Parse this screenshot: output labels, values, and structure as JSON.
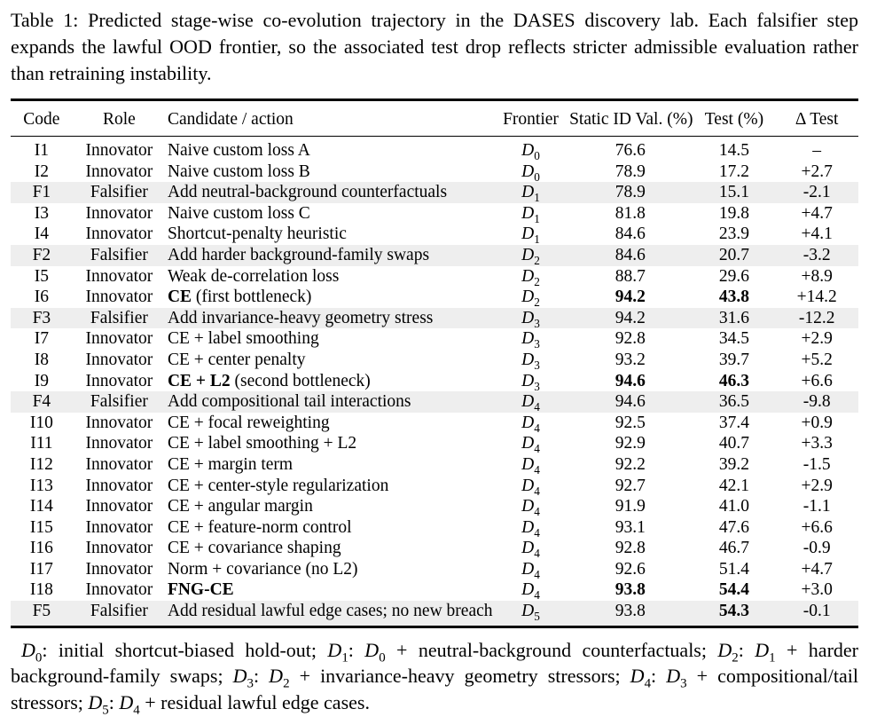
{
  "caption": "Table 1: Predicted stage-wise co-evolution trajectory in the DASES discovery lab. Each falsifier step expands the lawful OOD frontier, so the associated test drop reflects stricter admissible evaluation rather than retraining instability.",
  "table": {
    "headers": [
      "Code",
      "Role",
      "Candidate / action",
      "Frontier",
      "Static ID Val. (%)",
      "Test (%)",
      "Δ Test"
    ],
    "rows": [
      {
        "code": "I1",
        "role": "Innovator",
        "candidate_bold": "",
        "candidate": "Naive custom loss A",
        "frontier": "D_0",
        "static": "76.6",
        "static_bold": false,
        "test": "14.5",
        "test_bold": false,
        "delta": "–",
        "shaded": false
      },
      {
        "code": "I2",
        "role": "Innovator",
        "candidate_bold": "",
        "candidate": "Naive custom loss B",
        "frontier": "D_0",
        "static": "78.9",
        "static_bold": false,
        "test": "17.2",
        "test_bold": false,
        "delta": "+2.7",
        "shaded": false
      },
      {
        "code": "F1",
        "role": "Falsifier",
        "candidate_bold": "",
        "candidate": "Add neutral-background counterfactuals",
        "frontier": "D_1",
        "static": "78.9",
        "static_bold": false,
        "test": "15.1",
        "test_bold": false,
        "delta": "-2.1",
        "shaded": true
      },
      {
        "code": "I3",
        "role": "Innovator",
        "candidate_bold": "",
        "candidate": "Naive custom loss C",
        "frontier": "D_1",
        "static": "81.8",
        "static_bold": false,
        "test": "19.8",
        "test_bold": false,
        "delta": "+4.7",
        "shaded": false
      },
      {
        "code": "I4",
        "role": "Innovator",
        "candidate_bold": "",
        "candidate": "Shortcut-penalty heuristic",
        "frontier": "D_1",
        "static": "84.6",
        "static_bold": false,
        "test": "23.9",
        "test_bold": false,
        "delta": "+4.1",
        "shaded": false
      },
      {
        "code": "F2",
        "role": "Falsifier",
        "candidate_bold": "",
        "candidate": "Add harder background-family swaps",
        "frontier": "D_2",
        "static": "84.6",
        "static_bold": false,
        "test": "20.7",
        "test_bold": false,
        "delta": "-3.2",
        "shaded": true
      },
      {
        "code": "I5",
        "role": "Innovator",
        "candidate_bold": "",
        "candidate": "Weak de-correlation loss",
        "frontier": "D_2",
        "static": "88.7",
        "static_bold": false,
        "test": "29.6",
        "test_bold": false,
        "delta": "+8.9",
        "shaded": false
      },
      {
        "code": "I6",
        "role": "Innovator",
        "candidate_bold": "CE",
        "candidate": " (first bottleneck)",
        "frontier": "D_2",
        "static": "94.2",
        "static_bold": true,
        "test": "43.8",
        "test_bold": true,
        "delta": "+14.2",
        "shaded": false
      },
      {
        "code": "F3",
        "role": "Falsifier",
        "candidate_bold": "",
        "candidate": "Add invariance-heavy geometry stress",
        "frontier": "D_3",
        "static": "94.2",
        "static_bold": false,
        "test": "31.6",
        "test_bold": false,
        "delta": "-12.2",
        "shaded": true
      },
      {
        "code": "I7",
        "role": "Innovator",
        "candidate_bold": "",
        "candidate": "CE + label smoothing",
        "frontier": "D_3",
        "static": "92.8",
        "static_bold": false,
        "test": "34.5",
        "test_bold": false,
        "delta": "+2.9",
        "shaded": false
      },
      {
        "code": "I8",
        "role": "Innovator",
        "candidate_bold": "",
        "candidate": "CE + center penalty",
        "frontier": "D_3",
        "static": "93.2",
        "static_bold": false,
        "test": "39.7",
        "test_bold": false,
        "delta": "+5.2",
        "shaded": false
      },
      {
        "code": "I9",
        "role": "Innovator",
        "candidate_bold": "CE + L2",
        "candidate": " (second bottleneck)",
        "frontier": "D_3",
        "static": "94.6",
        "static_bold": true,
        "test": "46.3",
        "test_bold": true,
        "delta": "+6.6",
        "shaded": false
      },
      {
        "code": "F4",
        "role": "Falsifier",
        "candidate_bold": "",
        "candidate": "Add compositional tail interactions",
        "frontier": "D_4",
        "static": "94.6",
        "static_bold": false,
        "test": "36.5",
        "test_bold": false,
        "delta": "-9.8",
        "shaded": true
      },
      {
        "code": "I10",
        "role": "Innovator",
        "candidate_bold": "",
        "candidate": "CE + focal reweighting",
        "frontier": "D_4",
        "static": "92.5",
        "static_bold": false,
        "test": "37.4",
        "test_bold": false,
        "delta": "+0.9",
        "shaded": false
      },
      {
        "code": "I11",
        "role": "Innovator",
        "candidate_bold": "",
        "candidate": "CE + label smoothing + L2",
        "frontier": "D_4",
        "static": "92.9",
        "static_bold": false,
        "test": "40.7",
        "test_bold": false,
        "delta": "+3.3",
        "shaded": false
      },
      {
        "code": "I12",
        "role": "Innovator",
        "candidate_bold": "",
        "candidate": "CE + margin term",
        "frontier": "D_4",
        "static": "92.2",
        "static_bold": false,
        "test": "39.2",
        "test_bold": false,
        "delta": "-1.5",
        "shaded": false
      },
      {
        "code": "I13",
        "role": "Innovator",
        "candidate_bold": "",
        "candidate": "CE + center-style regularization",
        "frontier": "D_4",
        "static": "92.7",
        "static_bold": false,
        "test": "42.1",
        "test_bold": false,
        "delta": "+2.9",
        "shaded": false
      },
      {
        "code": "I14",
        "role": "Innovator",
        "candidate_bold": "",
        "candidate": "CE + angular margin",
        "frontier": "D_4",
        "static": "91.9",
        "static_bold": false,
        "test": "41.0",
        "test_bold": false,
        "delta": "-1.1",
        "shaded": false
      },
      {
        "code": "I15",
        "role": "Innovator",
        "candidate_bold": "",
        "candidate": "CE + feature-norm control",
        "frontier": "D_4",
        "static": "93.1",
        "static_bold": false,
        "test": "47.6",
        "test_bold": false,
        "delta": "+6.6",
        "shaded": false
      },
      {
        "code": "I16",
        "role": "Innovator",
        "candidate_bold": "",
        "candidate": "CE + covariance shaping",
        "frontier": "D_4",
        "static": "92.8",
        "static_bold": false,
        "test": "46.7",
        "test_bold": false,
        "delta": "-0.9",
        "shaded": false
      },
      {
        "code": "I17",
        "role": "Innovator",
        "candidate_bold": "",
        "candidate": "Norm + covariance (no L2)",
        "frontier": "D_4",
        "static": "92.6",
        "static_bold": false,
        "test": "51.4",
        "test_bold": false,
        "delta": "+4.7",
        "shaded": false
      },
      {
        "code": "I18",
        "role": "Innovator",
        "candidate_bold": "FNG-CE",
        "candidate": "",
        "frontier": "D_4",
        "static": "93.8",
        "static_bold": true,
        "test": "54.4",
        "test_bold": true,
        "delta": "+3.0",
        "shaded": false
      },
      {
        "code": "F5",
        "role": "Falsifier",
        "candidate_bold": "",
        "candidate": "Add residual lawful edge cases; no new breach",
        "frontier": "D_5",
        "static": "93.8",
        "static_bold": false,
        "test": "54.3",
        "test_bold": true,
        "delta": "-0.1",
        "shaded": true
      }
    ]
  },
  "footnote": "D_0: initial shortcut-biased hold-out; D_1: D_0 + neutral-background counterfactuals; D_2: D_1 + harder background-family swaps; D_3: D_2 + invariance-heavy geometry stressors; D_4: D_3 + compositional/tail stressors; D_5: D_4 + residual lawful edge cases."
}
